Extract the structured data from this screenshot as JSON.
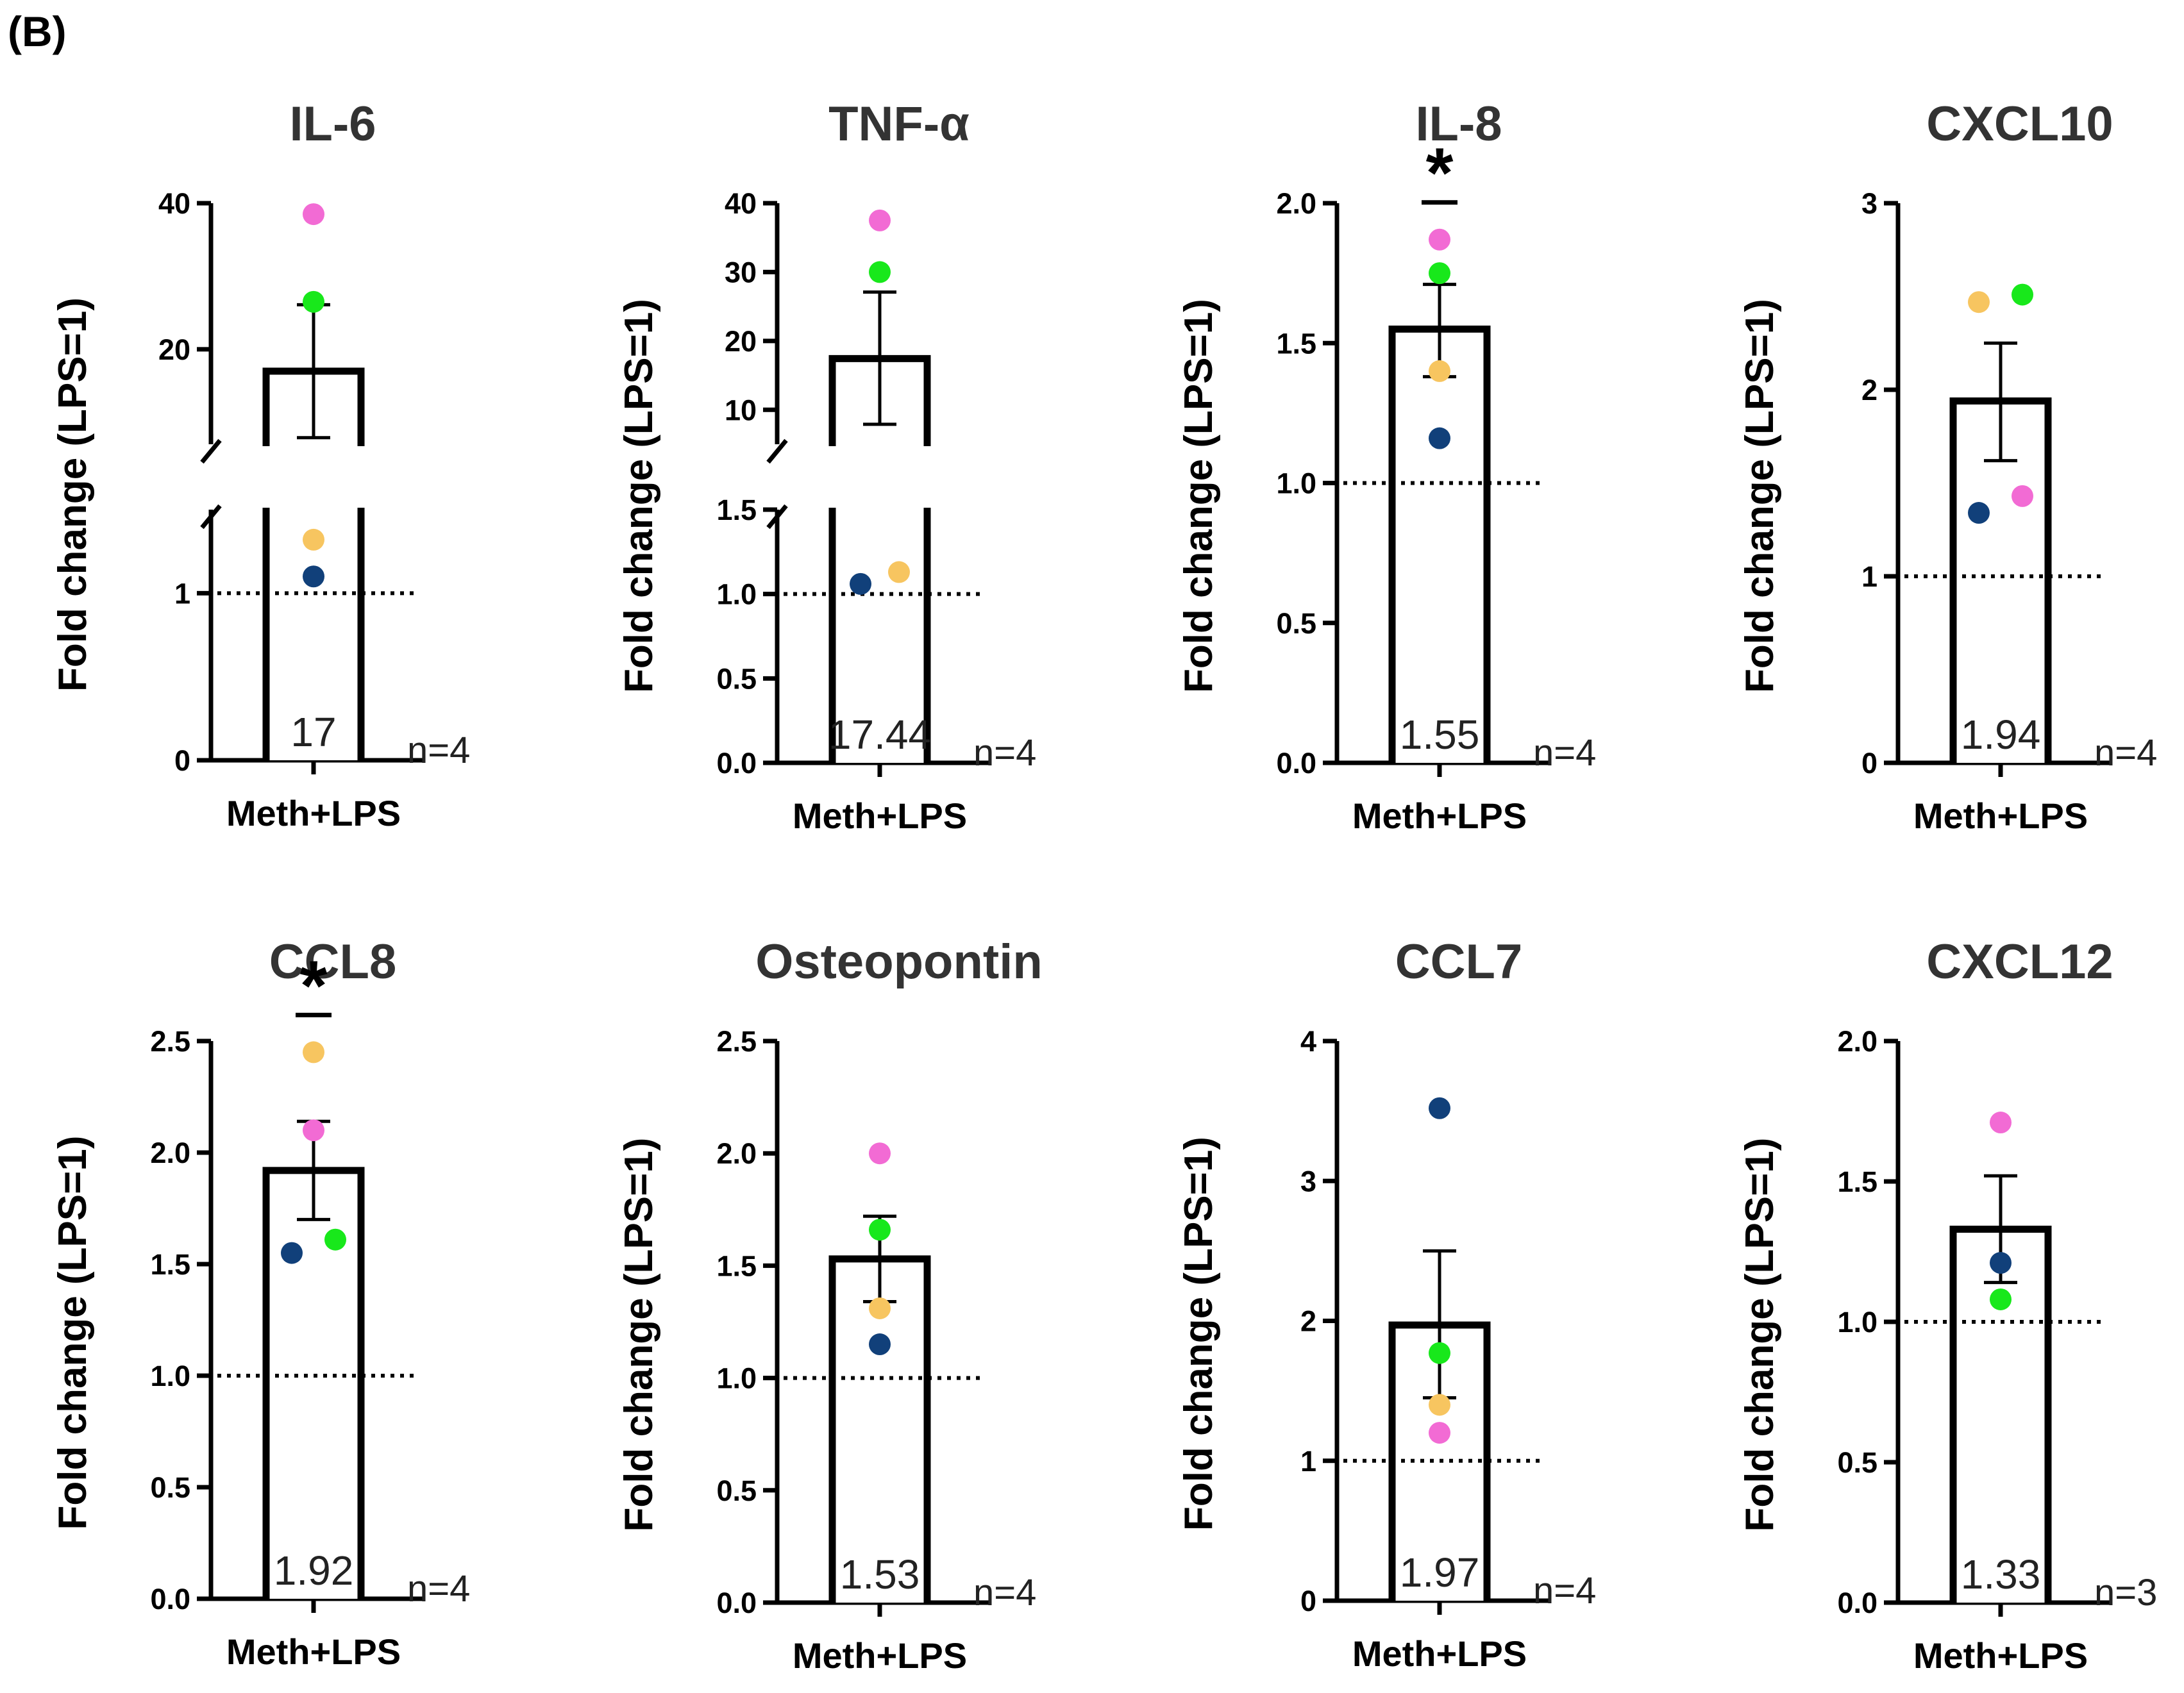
{
  "figure": {
    "panel_label": "(B)"
  },
  "colors": {
    "axis": "#000000",
    "pink": "#f26bd4",
    "green": "#18e81b",
    "orange": "#f7c560",
    "navy": "#11407a"
  },
  "chart_data": [
    {
      "type": "bar",
      "title": "IL-6",
      "xlabel": "Meth+LPS",
      "ylabel": "Fold change (LPS=1)",
      "categories": [
        "Meth+LPS"
      ],
      "values": [
        17
      ],
      "value_label": "17",
      "n_label": "n=4",
      "sem": [
        7.9,
        26.1
      ],
      "reference_line": 1,
      "significance": "",
      "axis_break": true,
      "lower_ylim": [
        0,
        1.5
      ],
      "upper_ylim": [
        7,
        40
      ],
      "yticks_lower": [
        {
          "v": 0,
          "l": "0"
        },
        {
          "v": 1,
          "l": "1"
        }
      ],
      "yticks_upper": [
        {
          "v": 20,
          "l": "20"
        },
        {
          "v": 40,
          "l": "40"
        }
      ],
      "points": [
        {
          "value": 38.5,
          "color": "pink",
          "offset": 0
        },
        {
          "value": 26.5,
          "color": "green",
          "offset": 0
        },
        {
          "value": 1.32,
          "color": "orange",
          "offset": 0
        },
        {
          "value": 1.1,
          "color": "navy",
          "offset": 0
        }
      ]
    },
    {
      "type": "bar",
      "title": "TNF-α",
      "xlabel": "Meth+LPS",
      "ylabel": "Fold change (LPS=1)",
      "categories": [
        "Meth+LPS"
      ],
      "values": [
        17.44
      ],
      "value_label": "17.44",
      "n_label": "n=4",
      "sem": [
        7.9,
        27.1
      ],
      "reference_line": 1,
      "significance": "",
      "axis_break": true,
      "lower_ylim": [
        0,
        1.5
      ],
      "upper_ylim": [
        5,
        40
      ],
      "yticks_lower": [
        {
          "v": 0,
          "l": "0.0"
        },
        {
          "v": 0.5,
          "l": "0.5"
        },
        {
          "v": 1,
          "l": "1.0"
        },
        {
          "v": 1.5,
          "l": "1.5"
        }
      ],
      "yticks_upper": [
        {
          "v": 10,
          "l": "10"
        },
        {
          "v": 20,
          "l": "20"
        },
        {
          "v": 30,
          "l": "30"
        },
        {
          "v": 40,
          "l": "40"
        }
      ],
      "points": [
        {
          "value": 37.5,
          "color": "pink",
          "offset": 0
        },
        {
          "value": 30,
          "color": "green",
          "offset": 0
        },
        {
          "value": 1.13,
          "color": "orange",
          "offset": 30
        },
        {
          "value": 1.06,
          "color": "navy",
          "offset": -30
        }
      ]
    },
    {
      "type": "bar",
      "title": "IL-8",
      "xlabel": "Meth+LPS",
      "ylabel": "Fold change (LPS=1)",
      "categories": [
        "Meth+LPS"
      ],
      "values": [
        1.55
      ],
      "value_label": "1.55",
      "n_label": "n=4",
      "sem": [
        1.38,
        1.71
      ],
      "reference_line": 1,
      "significance": "*",
      "axis_break": false,
      "ylim": [
        0,
        2
      ],
      "yticks": [
        {
          "v": 0,
          "l": "0.0"
        },
        {
          "v": 0.5,
          "l": "0.5"
        },
        {
          "v": 1,
          "l": "1.0"
        },
        {
          "v": 1.5,
          "l": "1.5"
        },
        {
          "v": 2,
          "l": "2.0"
        }
      ],
      "points": [
        {
          "value": 1.87,
          "color": "pink",
          "offset": 0
        },
        {
          "value": 1.75,
          "color": "green",
          "offset": 0
        },
        {
          "value": 1.4,
          "color": "orange",
          "offset": 0
        },
        {
          "value": 1.16,
          "color": "navy",
          "offset": 0
        }
      ]
    },
    {
      "type": "bar",
      "title": "CXCL10",
      "xlabel": "Meth+LPS",
      "ylabel": "Fold change (LPS=1)",
      "categories": [
        "Meth+LPS"
      ],
      "values": [
        1.94
      ],
      "value_label": "1.94",
      "n_label": "n=4",
      "sem": [
        1.62,
        2.25
      ],
      "reference_line": 1,
      "significance": "",
      "axis_break": false,
      "ylim": [
        0,
        3
      ],
      "yticks": [
        {
          "v": 0,
          "l": "0"
        },
        {
          "v": 1,
          "l": "1"
        },
        {
          "v": 2,
          "l": "2"
        },
        {
          "v": 3,
          "l": "3"
        }
      ],
      "points": [
        {
          "value": 2.47,
          "color": "orange",
          "offset": -34
        },
        {
          "value": 2.51,
          "color": "green",
          "offset": 34
        },
        {
          "value": 1.43,
          "color": "pink",
          "offset": 34
        },
        {
          "value": 1.34,
          "color": "navy",
          "offset": -34
        }
      ]
    },
    {
      "type": "bar",
      "title": "CCL8",
      "xlabel": "Meth+LPS",
      "ylabel": "Fold change (LPS=1)",
      "categories": [
        "Meth+LPS"
      ],
      "values": [
        1.92
      ],
      "value_label": "1.92",
      "n_label": "n=4",
      "sem": [
        1.7,
        2.14
      ],
      "reference_line": 1,
      "significance": "*",
      "axis_break": false,
      "ylim": [
        0,
        2.5
      ],
      "yticks": [
        {
          "v": 0,
          "l": "0.0"
        },
        {
          "v": 0.5,
          "l": "0.5"
        },
        {
          "v": 1,
          "l": "1.0"
        },
        {
          "v": 1.5,
          "l": "1.5"
        },
        {
          "v": 2,
          "l": "2.0"
        },
        {
          "v": 2.5,
          "l": "2.5"
        }
      ],
      "points": [
        {
          "value": 2.45,
          "color": "orange",
          "offset": 0
        },
        {
          "value": 2.1,
          "color": "pink",
          "offset": 0
        },
        {
          "value": 1.61,
          "color": "green",
          "offset": 34
        },
        {
          "value": 1.55,
          "color": "navy",
          "offset": -34
        }
      ]
    },
    {
      "type": "bar",
      "title": "Osteopontin",
      "xlabel": "Meth+LPS",
      "ylabel": "Fold change (LPS=1)",
      "categories": [
        "Meth+LPS"
      ],
      "values": [
        1.53
      ],
      "value_label": "1.53",
      "n_label": "n=4",
      "sem": [
        1.34,
        1.72
      ],
      "reference_line": 1,
      "significance": "",
      "axis_break": false,
      "ylim": [
        0,
        2.5
      ],
      "yticks": [
        {
          "v": 0,
          "l": "0.0"
        },
        {
          "v": 0.5,
          "l": "0.5"
        },
        {
          "v": 1,
          "l": "1.0"
        },
        {
          "v": 1.5,
          "l": "1.5"
        },
        {
          "v": 2,
          "l": "2.0"
        },
        {
          "v": 2.5,
          "l": "2.5"
        }
      ],
      "points": [
        {
          "value": 2.0,
          "color": "pink",
          "offset": 0
        },
        {
          "value": 1.66,
          "color": "green",
          "offset": 0
        },
        {
          "value": 1.31,
          "color": "orange",
          "offset": 0
        },
        {
          "value": 1.15,
          "color": "navy",
          "offset": 0
        }
      ]
    },
    {
      "type": "bar",
      "title": "CCL7",
      "xlabel": "Meth+LPS",
      "ylabel": "Fold change (LPS=1)",
      "categories": [
        "Meth+LPS"
      ],
      "values": [
        1.97
      ],
      "value_label": "1.97",
      "n_label": "n=4",
      "sem": [
        1.45,
        2.5
      ],
      "reference_line": 1,
      "significance": "",
      "axis_break": false,
      "ylim": [
        0,
        4
      ],
      "yticks": [
        {
          "v": 0,
          "l": "0"
        },
        {
          "v": 1,
          "l": "1"
        },
        {
          "v": 2,
          "l": "2"
        },
        {
          "v": 3,
          "l": "3"
        },
        {
          "v": 4,
          "l": "4"
        }
      ],
      "points": [
        {
          "value": 3.52,
          "color": "navy",
          "offset": 0
        },
        {
          "value": 1.77,
          "color": "green",
          "offset": 0
        },
        {
          "value": 1.4,
          "color": "orange",
          "offset": 0
        },
        {
          "value": 1.2,
          "color": "pink",
          "offset": 0
        }
      ]
    },
    {
      "type": "bar",
      "title": "CXCL12",
      "xlabel": "Meth+LPS",
      "ylabel": "Fold change (LPS=1)",
      "categories": [
        "Meth+LPS"
      ],
      "values": [
        1.33
      ],
      "value_label": "1.33",
      "n_label": "n=3",
      "sem": [
        1.14,
        1.52
      ],
      "reference_line": 1,
      "significance": "",
      "axis_break": false,
      "ylim": [
        0,
        2
      ],
      "yticks": [
        {
          "v": 0,
          "l": "0.0"
        },
        {
          "v": 0.5,
          "l": "0.5"
        },
        {
          "v": 1,
          "l": "1.0"
        },
        {
          "v": 1.5,
          "l": "1.5"
        },
        {
          "v": 2,
          "l": "2.0"
        }
      ],
      "points": [
        {
          "value": 1.71,
          "color": "pink",
          "offset": 0
        },
        {
          "value": 1.21,
          "color": "navy",
          "offset": 0
        },
        {
          "value": 1.08,
          "color": "green",
          "offset": 0
        }
      ]
    }
  ]
}
